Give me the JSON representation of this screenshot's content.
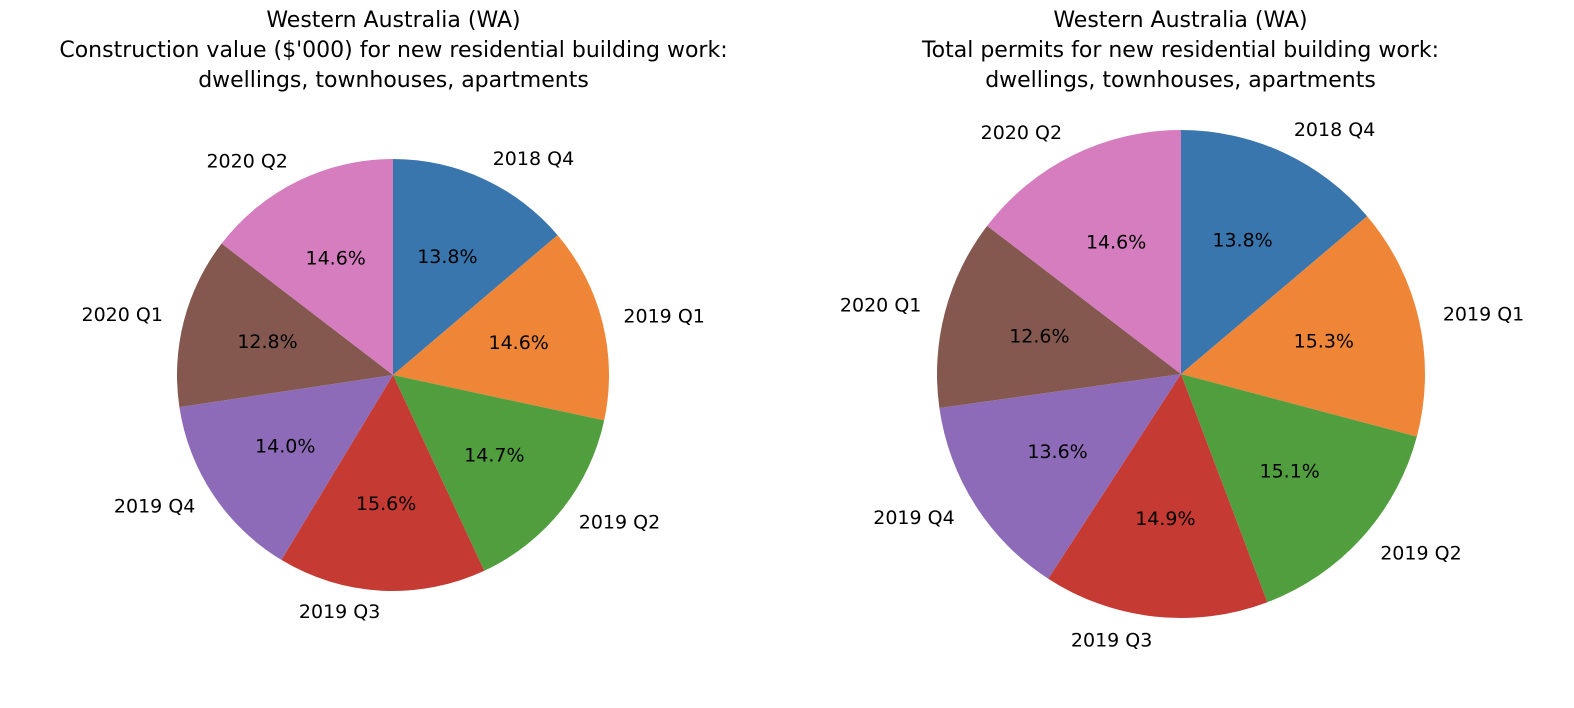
{
  "chart_data": [
    {
      "type": "pie",
      "title": [
        "Western Australia (WA)",
        "Construction value ($'000) for new residential building work:",
        "dwellings, townhouses, apartments"
      ],
      "categories": [
        "2018 Q4",
        "2019 Q1",
        "2019 Q2",
        "2019 Q3",
        "2019 Q4",
        "2020 Q1",
        "2020 Q2"
      ],
      "values": [
        13.8,
        14.6,
        14.7,
        15.6,
        14.0,
        12.8,
        14.6
      ],
      "value_labels": [
        "13.8%",
        "14.6%",
        "14.7%",
        "15.6%",
        "14.0%",
        "12.8%",
        "14.6%"
      ],
      "start_angle": 90,
      "direction": "clockwise"
    },
    {
      "type": "pie",
      "title": [
        "Western Australia (WA)",
        "Total permits for new residential building work:",
        "dwellings, townhouses, apartments"
      ],
      "categories": [
        "2018 Q4",
        "2019 Q1",
        "2019 Q2",
        "2019 Q3",
        "2019 Q4",
        "2020 Q1",
        "2020 Q2"
      ],
      "values": [
        13.8,
        15.3,
        15.1,
        14.9,
        13.6,
        12.6,
        14.6
      ],
      "value_labels": [
        "13.8%",
        "15.3%",
        "15.1%",
        "14.9%",
        "13.6%",
        "12.6%",
        "14.6%"
      ],
      "start_angle": 90,
      "direction": "clockwise"
    }
  ],
  "colors": [
    "#3a76ae",
    "#ef8536",
    "#519e3e",
    "#c53a32",
    "#8d6bb8",
    "#84584e",
    "#d57dbf"
  ]
}
